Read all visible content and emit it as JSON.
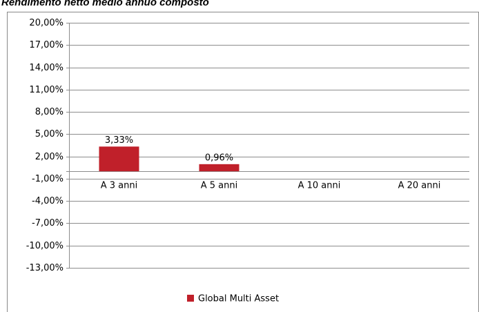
{
  "chart_data": {
    "type": "bar",
    "title": "Rendimento netto medio annuo composto",
    "categories": [
      "A 3 anni",
      "A 5 anni",
      "A 10 anni",
      "A 20 anni"
    ],
    "series": [
      {
        "name": "Global Multi Asset",
        "color": "#c0202a",
        "values": [
          3.33,
          0.96,
          null,
          null
        ],
        "value_labels": [
          "3,33%",
          "0,96%",
          null,
          null
        ]
      }
    ],
    "ylim": [
      -13,
      20
    ],
    "yticks": [
      {
        "value": 20,
        "label": "20,00%"
      },
      {
        "value": 17,
        "label": "17,00%"
      },
      {
        "value": 14,
        "label": "14,00%"
      },
      {
        "value": 11,
        "label": "11,00%"
      },
      {
        "value": 8,
        "label": "8,00%"
      },
      {
        "value": 5,
        "label": "5,00%"
      },
      {
        "value": 2,
        "label": "2,00%"
      },
      {
        "value": -1,
        "label": "-1,00%"
      },
      {
        "value": -4,
        "label": "-4,00%"
      },
      {
        "value": -7,
        "label": "-7,00%"
      },
      {
        "value": -10,
        "label": "-10,00%"
      },
      {
        "value": -13,
        "label": "-13,00%"
      }
    ],
    "grid": true,
    "legend": "bottom"
  }
}
